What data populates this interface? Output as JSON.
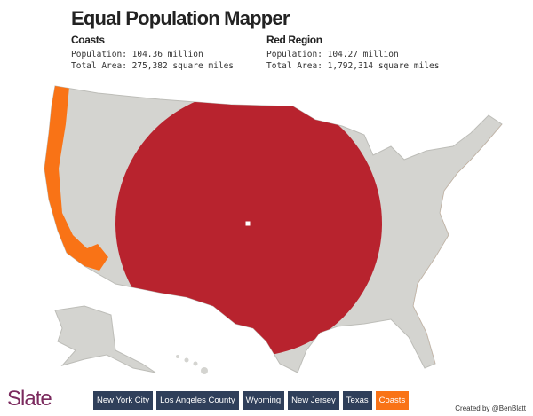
{
  "header": {
    "title": "Equal Population Mapper"
  },
  "panels": [
    {
      "name": "Coasts",
      "population": "Population: 104.36 million",
      "area": "Total Area: 275,382 square miles"
    },
    {
      "name": "Red Region",
      "population": "Population: 104.27 million",
      "area": "Total Area: 1,792,314 square miles"
    }
  ],
  "buttons": [
    "New York City",
    "Los Angeles County",
    "Wyoming",
    "New Jersey",
    "Texas",
    "Coasts"
  ],
  "footer": {
    "logo": "Slate",
    "credit": "Created by @BenBlatt"
  }
}
